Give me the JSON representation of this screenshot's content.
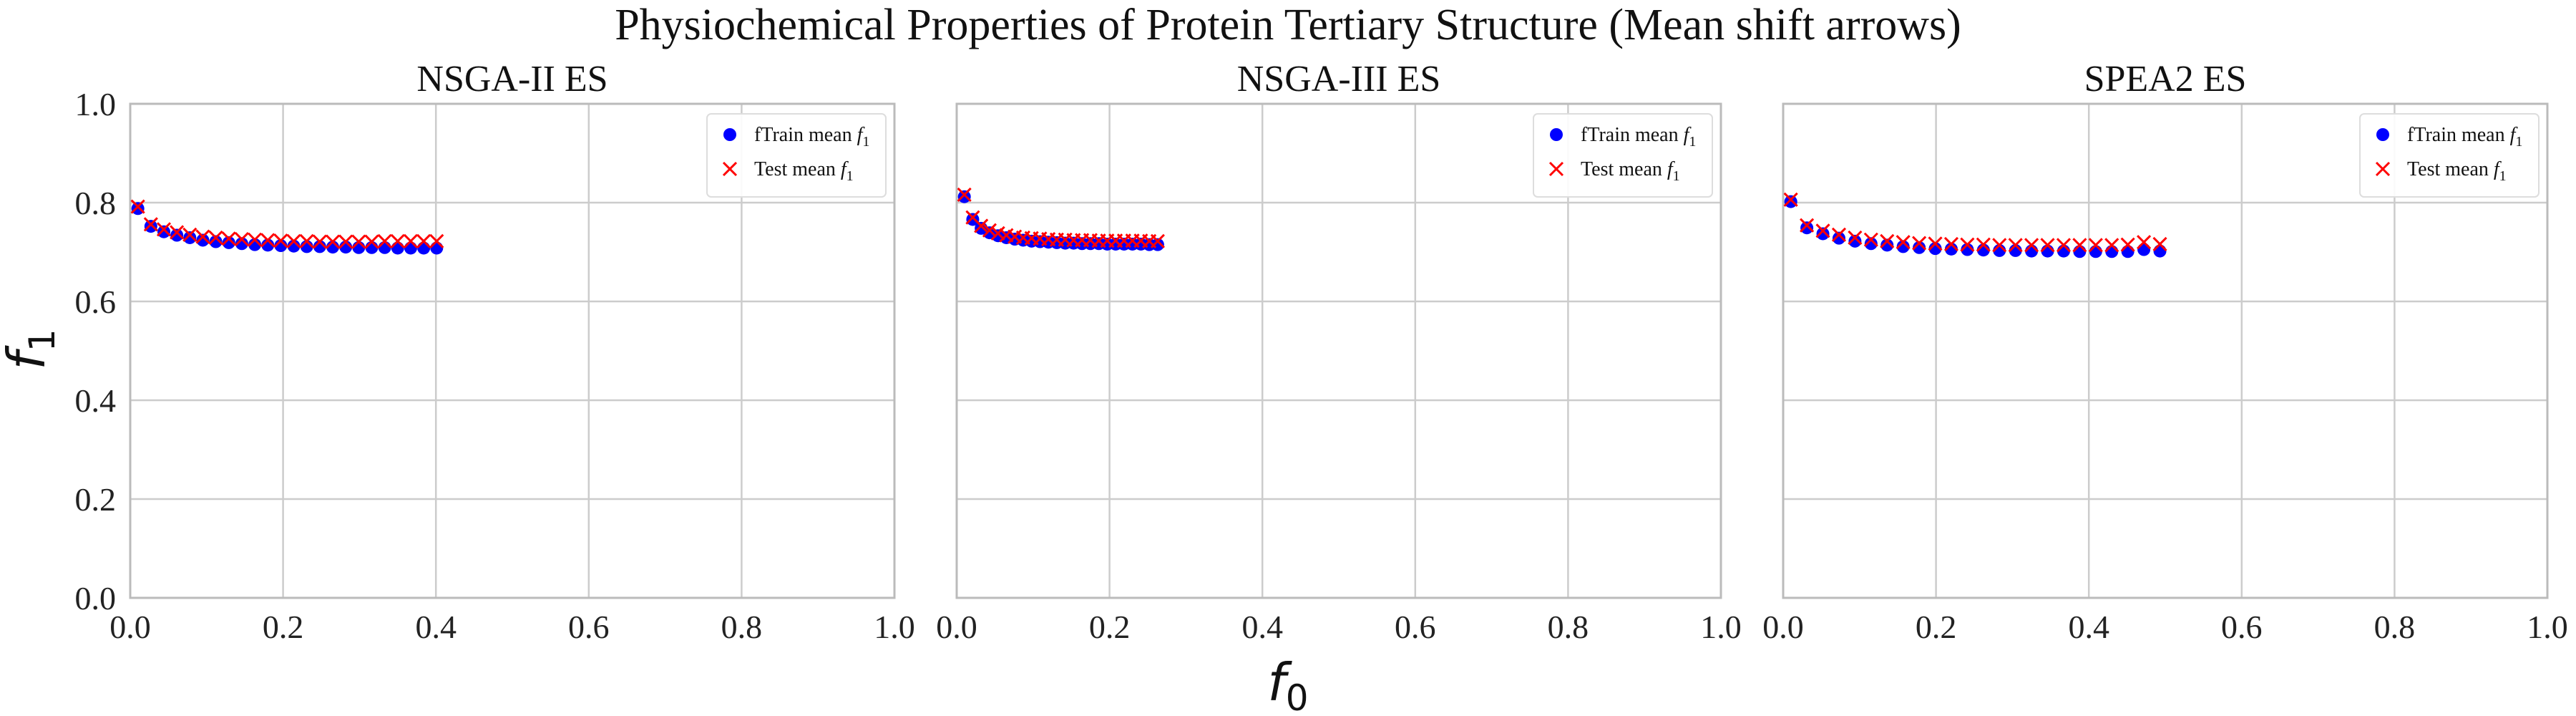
{
  "figure": {
    "title": "Physiochemical Properties of Protein Tertiary Structure (Mean shift arrows)",
    "xlabel": "f",
    "xlabel_sub": "0",
    "ylabel": "f",
    "ylabel_sub": "1"
  },
  "colors": {
    "train": "#0000ff",
    "test": "#ff0000",
    "grid": "#cccccc",
    "spine": "#bbbbbb",
    "arrow": "#7a1fa2"
  },
  "chart_data": [
    {
      "type": "scatter",
      "title": "NSGA-II ES",
      "xlim": [
        0.0,
        1.0
      ],
      "ylim": [
        0.0,
        1.0
      ],
      "xticks": [
        "0.0",
        "0.2",
        "0.4",
        "0.6",
        "0.8",
        "1.0"
      ],
      "yticks": [
        "0.0",
        "0.2",
        "0.4",
        "0.6",
        "0.8",
        "1.0"
      ],
      "grid": true,
      "legend_position": "top-right",
      "legend": [
        {
          "label": "fTrain mean ",
          "math": "f",
          "sub": "1",
          "marker": "circle"
        },
        {
          "label": "Test mean ",
          "math": "f",
          "sub": "1",
          "marker": "x"
        }
      ],
      "series": [
        {
          "name": "fTrain mean f1",
          "marker": "circle",
          "x": [
            0.01,
            0.027,
            0.044,
            0.061,
            0.078,
            0.095,
            0.112,
            0.129,
            0.146,
            0.163,
            0.18,
            0.197,
            0.214,
            0.231,
            0.248,
            0.265,
            0.282,
            0.299,
            0.316,
            0.333,
            0.35,
            0.367,
            0.384,
            0.401
          ],
          "y": [
            0.788,
            0.752,
            0.741,
            0.734,
            0.729,
            0.724,
            0.721,
            0.719,
            0.717,
            0.715,
            0.714,
            0.713,
            0.712,
            0.711,
            0.711,
            0.71,
            0.71,
            0.709,
            0.709,
            0.709,
            0.708,
            0.708,
            0.708,
            0.708
          ]
        },
        {
          "name": "Test mean f1",
          "marker": "x",
          "x": [
            0.01,
            0.027,
            0.044,
            0.061,
            0.078,
            0.095,
            0.112,
            0.129,
            0.146,
            0.163,
            0.18,
            0.197,
            0.214,
            0.231,
            0.248,
            0.265,
            0.282,
            0.299,
            0.316,
            0.333,
            0.35,
            0.367,
            0.384,
            0.401
          ],
          "y": [
            0.792,
            0.756,
            0.746,
            0.74,
            0.735,
            0.731,
            0.729,
            0.727,
            0.726,
            0.725,
            0.724,
            0.723,
            0.722,
            0.722,
            0.721,
            0.721,
            0.721,
            0.721,
            0.721,
            0.722,
            0.722,
            0.722,
            0.722,
            0.722
          ]
        }
      ]
    },
    {
      "type": "scatter",
      "title": "NSGA-III ES",
      "xlim": [
        0.0,
        1.0
      ],
      "ylim": [
        0.0,
        1.0
      ],
      "xticks": [
        "0.0",
        "0.2",
        "0.4",
        "0.6",
        "0.8",
        "1.0"
      ],
      "yticks": [
        "0.0",
        "0.2",
        "0.4",
        "0.6",
        "0.8",
        "1.0"
      ],
      "grid": true,
      "legend_position": "top-right",
      "legend": [
        {
          "label": "fTrain mean ",
          "math": "f",
          "sub": "1",
          "marker": "circle"
        },
        {
          "label": "Test mean ",
          "math": "f",
          "sub": "1",
          "marker": "x"
        }
      ],
      "series": [
        {
          "name": "fTrain mean f1",
          "marker": "circle",
          "x": [
            0.01,
            0.021,
            0.032,
            0.043,
            0.054,
            0.065,
            0.076,
            0.087,
            0.098,
            0.109,
            0.12,
            0.131,
            0.142,
            0.153,
            0.164,
            0.175,
            0.186,
            0.197,
            0.208,
            0.219,
            0.23,
            0.241,
            0.252,
            0.263
          ],
          "y": [
            0.812,
            0.766,
            0.748,
            0.739,
            0.733,
            0.729,
            0.726,
            0.724,
            0.722,
            0.721,
            0.72,
            0.719,
            0.718,
            0.718,
            0.717,
            0.717,
            0.717,
            0.716,
            0.716,
            0.716,
            0.716,
            0.716,
            0.715,
            0.715
          ]
        },
        {
          "name": "Test mean f1",
          "marker": "x",
          "x": [
            0.01,
            0.021,
            0.032,
            0.043,
            0.054,
            0.065,
            0.076,
            0.087,
            0.098,
            0.109,
            0.12,
            0.131,
            0.142,
            0.153,
            0.164,
            0.175,
            0.186,
            0.197,
            0.208,
            0.219,
            0.23,
            0.241,
            0.252,
            0.263
          ],
          "y": [
            0.816,
            0.77,
            0.753,
            0.744,
            0.738,
            0.734,
            0.731,
            0.729,
            0.728,
            0.727,
            0.726,
            0.725,
            0.725,
            0.724,
            0.724,
            0.724,
            0.723,
            0.723,
            0.723,
            0.723,
            0.723,
            0.723,
            0.722,
            0.722
          ]
        }
      ]
    },
    {
      "type": "scatter",
      "title": "SPEA2 ES",
      "xlim": [
        0.0,
        1.0
      ],
      "ylim": [
        0.0,
        1.0
      ],
      "xticks": [
        "0.0",
        "0.2",
        "0.4",
        "0.6",
        "0.8",
        "1.0"
      ],
      "yticks": [
        "0.0",
        "0.2",
        "0.4",
        "0.6",
        "0.8",
        "1.0"
      ],
      "grid": true,
      "legend_position": "top-right",
      "legend": [
        {
          "label": "fTrain mean ",
          "math": "f",
          "sub": "1",
          "marker": "circle"
        },
        {
          "label": "Test mean ",
          "math": "f",
          "sub": "1",
          "marker": "x"
        }
      ],
      "series": [
        {
          "name": "fTrain mean f1",
          "marker": "circle",
          "x": [
            0.01,
            0.031,
            0.052,
            0.073,
            0.094,
            0.115,
            0.136,
            0.157,
            0.178,
            0.199,
            0.22,
            0.241,
            0.262,
            0.283,
            0.304,
            0.325,
            0.346,
            0.367,
            0.388,
            0.409,
            0.43,
            0.451,
            0.472,
            0.493
          ],
          "y": [
            0.802,
            0.749,
            0.737,
            0.728,
            0.722,
            0.717,
            0.714,
            0.711,
            0.709,
            0.707,
            0.706,
            0.705,
            0.704,
            0.703,
            0.703,
            0.702,
            0.702,
            0.702,
            0.701,
            0.701,
            0.701,
            0.701,
            0.705,
            0.702
          ]
        },
        {
          "name": "Test mean f1",
          "marker": "x",
          "x": [
            0.01,
            0.031,
            0.052,
            0.073,
            0.094,
            0.115,
            0.136,
            0.157,
            0.178,
            0.199,
            0.22,
            0.241,
            0.262,
            0.283,
            0.304,
            0.325,
            0.346,
            0.367,
            0.388,
            0.409,
            0.43,
            0.451,
            0.472,
            0.493
          ],
          "y": [
            0.806,
            0.754,
            0.743,
            0.735,
            0.729,
            0.725,
            0.722,
            0.72,
            0.718,
            0.717,
            0.716,
            0.715,
            0.715,
            0.714,
            0.714,
            0.714,
            0.714,
            0.714,
            0.714,
            0.714,
            0.714,
            0.715,
            0.72,
            0.716
          ]
        }
      ]
    }
  ]
}
